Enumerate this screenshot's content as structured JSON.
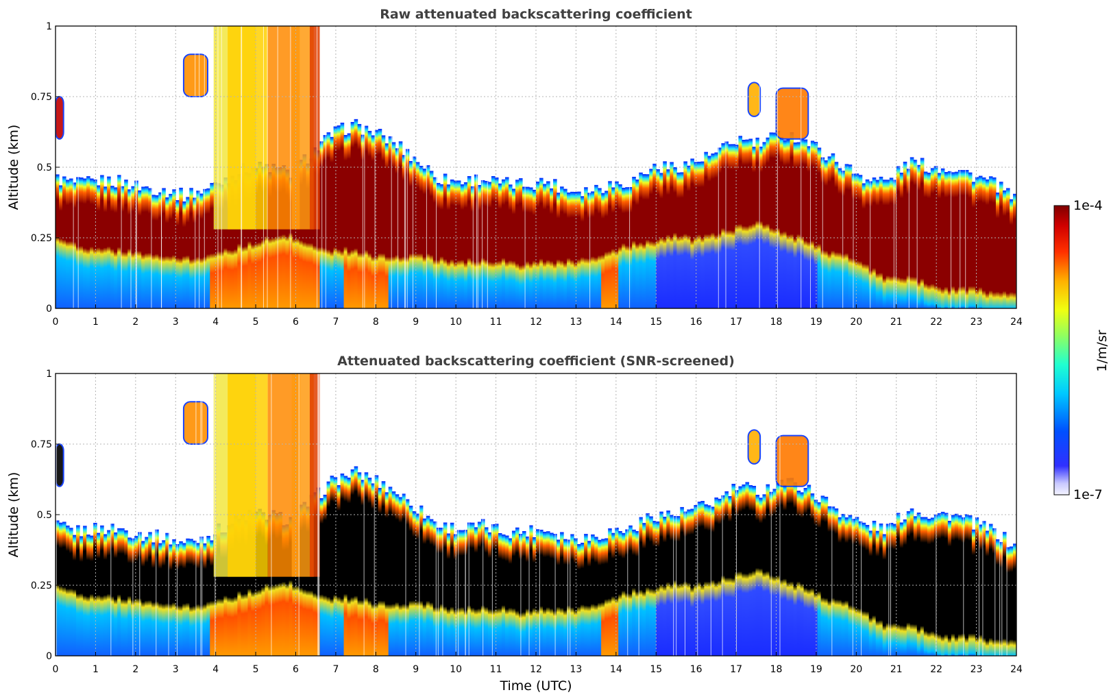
{
  "chart_data": [
    {
      "type": "heatmap",
      "title": "Raw attenuated backscattering coefficient",
      "xlabel": "",
      "ylabel": "Altitude (km)",
      "xlim": [
        0,
        24
      ],
      "ylim": [
        0,
        1
      ],
      "x_ticks": [
        "0",
        "1",
        "2",
        "3",
        "4",
        "5",
        "6",
        "7",
        "8",
        "9",
        "10",
        "11",
        "12",
        "13",
        "14",
        "15",
        "16",
        "17",
        "18",
        "19",
        "20",
        "21",
        "22",
        "23",
        "24"
      ],
      "y_ticks": [
        "0",
        "0.25",
        "0.5",
        "0.75",
        "1"
      ],
      "grid": true,
      "layer_top_km": [
        0.46,
        0.44,
        0.45,
        0.45,
        0.43,
        0.42,
        0.4,
        0.42,
        0.46,
        0.5,
        0.5,
        0.48,
        0.55,
        0.62,
        0.65,
        0.62,
        0.58,
        0.52,
        0.46,
        0.45,
        0.46,
        0.44,
        0.44,
        0.45,
        0.42,
        0.42,
        0.44,
        0.45,
        0.5,
        0.5,
        0.52,
        0.55,
        0.6,
        0.58,
        0.62,
        0.6,
        0.55,
        0.5,
        0.46,
        0.45,
        0.52,
        0.5,
        0.5,
        0.47,
        0.44,
        0.38
      ],
      "layer_base_km": [
        0.24,
        0.22,
        0.2,
        0.2,
        0.19,
        0.17,
        0.17,
        0.17,
        0.2,
        0.22,
        0.24,
        0.25,
        0.22,
        0.2,
        0.2,
        0.18,
        0.18,
        0.18,
        0.17,
        0.16,
        0.16,
        0.16,
        0.15,
        0.16,
        0.16,
        0.17,
        0.2,
        0.22,
        0.23,
        0.25,
        0.24,
        0.26,
        0.28,
        0.3,
        0.26,
        0.24,
        0.2,
        0.18,
        0.14,
        0.1,
        0.1,
        0.08,
        0.06,
        0.06,
        0.05,
        0.05
      ]
    },
    {
      "type": "heatmap",
      "title": "Attenuated backscattering coefficient (SNR-screened)",
      "xlabel": "Time (UTC)",
      "ylabel": "Altitude (km)",
      "xlim": [
        0,
        24
      ],
      "ylim": [
        0,
        1
      ],
      "x_ticks": [
        "0",
        "1",
        "2",
        "3",
        "4",
        "5",
        "6",
        "7",
        "8",
        "9",
        "10",
        "11",
        "12",
        "13",
        "14",
        "15",
        "16",
        "17",
        "18",
        "19",
        "20",
        "21",
        "22",
        "23",
        "24"
      ],
      "y_ticks": [
        "0",
        "0.25",
        "0.5",
        "0.75",
        "1"
      ],
      "grid": true,
      "screened_color": "#000000"
    }
  ],
  "colorbar": {
    "label": "1/m/sr",
    "max_label": "1e-4",
    "min_label": "1e-7",
    "scale": "log",
    "range": [
      1e-07,
      0.0001
    ]
  },
  "colors": {
    "axis": "#000000",
    "grid": "#b4b4b4",
    "title": "#404040"
  }
}
